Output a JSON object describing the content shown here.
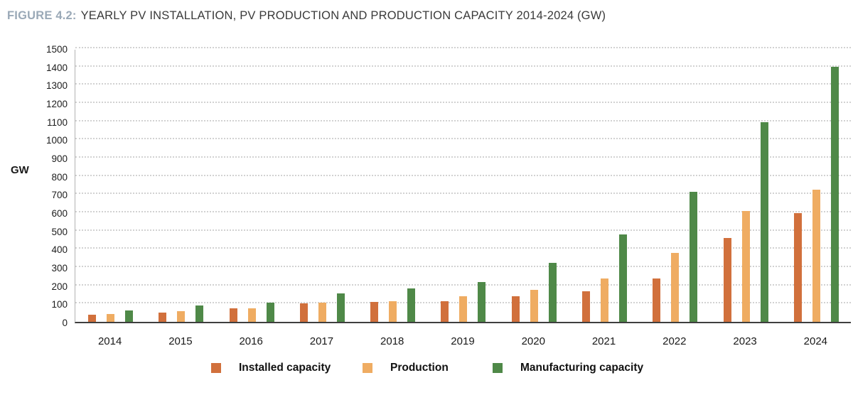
{
  "figure": {
    "label": "FIGURE 4.2:",
    "title": "YEARLY PV INSTALLATION, PV PRODUCTION AND PRODUCTION CAPACITY 2014-2024 (GW)"
  },
  "chart_data": {
    "type": "bar",
    "title": "YEARLY PV INSTALLATION, PV PRODUCTION AND PRODUCTION CAPACITY 2014-2024 (GW)",
    "xlabel": "",
    "ylabel": "GW",
    "ylim": [
      0,
      1500
    ],
    "ytick_step": 100,
    "grid": "horizontal-dotted",
    "legend_position": "bottom",
    "categories": [
      "2014",
      "2015",
      "2016",
      "2017",
      "2018",
      "2019",
      "2020",
      "2021",
      "2022",
      "2023",
      "2024"
    ],
    "series": [
      {
        "name": "Installed capacity",
        "color": "#D1703C",
        "values": [
          40,
          50,
          75,
          100,
          110,
          113,
          142,
          170,
          240,
          463,
          600
        ]
      },
      {
        "name": "Production",
        "color": "#EFAC62",
        "values": [
          45,
          58,
          75,
          105,
          115,
          140,
          175,
          240,
          380,
          612,
          728
        ]
      },
      {
        "name": "Manufacturing capacity",
        "color": "#4F8948",
        "values": [
          63,
          90,
          105,
          155,
          185,
          220,
          327,
          480,
          715,
          1100,
          1405
        ]
      }
    ]
  }
}
